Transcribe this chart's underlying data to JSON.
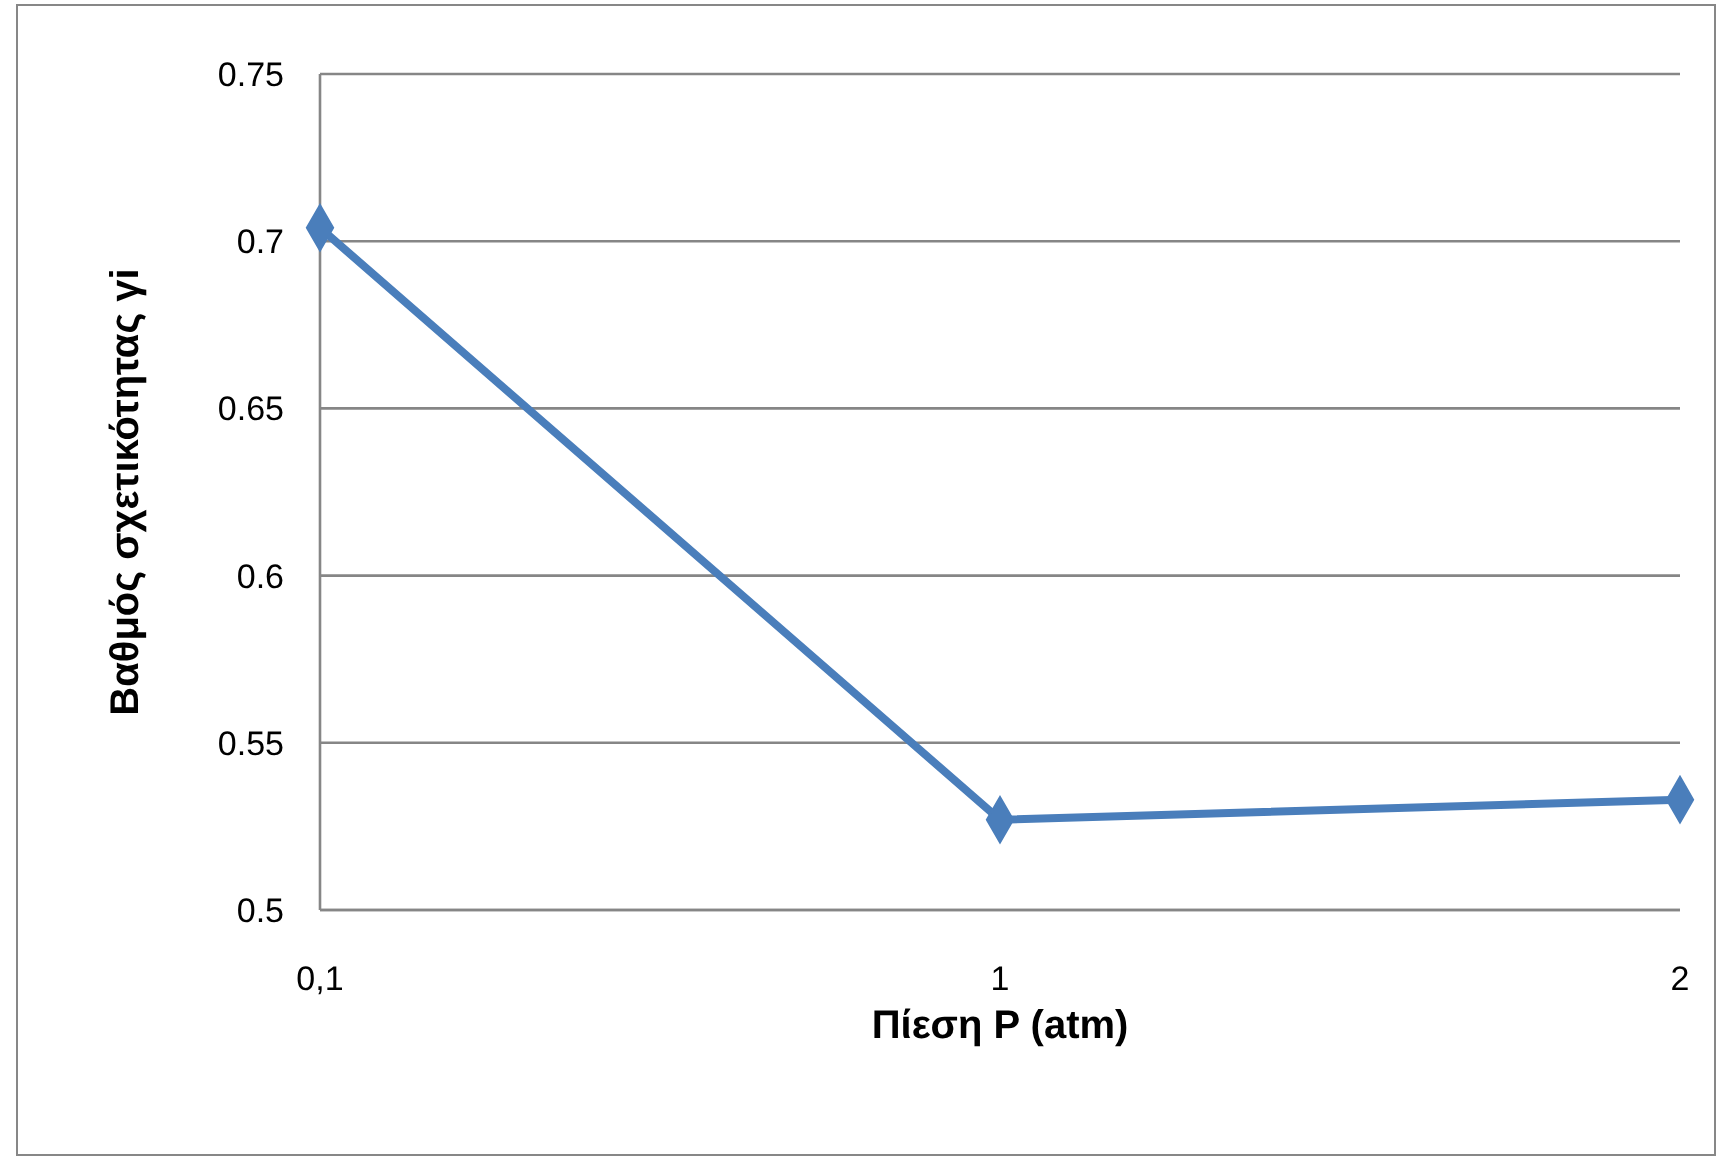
{
  "chart_data": {
    "type": "line",
    "xlabel": "Πίεση P (atm)",
    "ylabel": "Βαθμός σχετικότητας  γi",
    "categories": [
      "0,1",
      "1",
      "2"
    ],
    "series": [
      {
        "color": "#4a7ebb",
        "values": [
          0.704,
          0.527,
          0.533
        ]
      }
    ],
    "ylim": [
      0.5,
      0.75
    ],
    "yticks": [
      0.5,
      0.55,
      0.6,
      0.65,
      0.7,
      0.75
    ],
    "grid": "y",
    "legend": false,
    "marker": "diamond",
    "line_style": "solid"
  }
}
